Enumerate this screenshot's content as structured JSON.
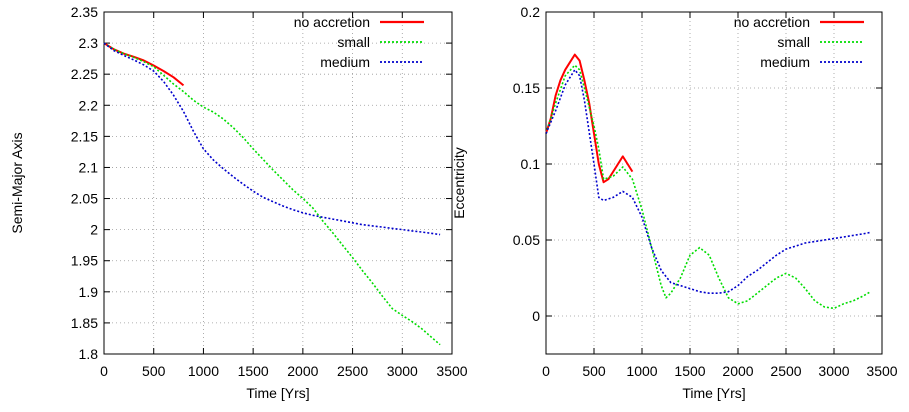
{
  "chart_data": [
    {
      "type": "line",
      "xlabel": "Time [Yrs]",
      "ylabel": "Semi-Major Axis",
      "xlim": [
        0,
        3500
      ],
      "ylim": [
        1.8,
        2.35
      ],
      "xticks": [
        "0",
        "500",
        "1000",
        "1500",
        "2000",
        "2500",
        "3000",
        "3500"
      ],
      "yticks": [
        "1.8",
        "1.85",
        "1.9",
        "1.95",
        "2",
        "2.05",
        "2.1",
        "2.15",
        "2.2",
        "2.25",
        "2.3",
        "2.35"
      ],
      "grid": true,
      "legend_position": "top-right",
      "series": [
        {
          "name": "no accretion",
          "color": "#ff0000",
          "x": [
            0,
            100,
            200,
            300,
            400,
            500,
            600,
            700,
            800
          ],
          "y": [
            2.3,
            2.29,
            2.283,
            2.278,
            2.272,
            2.264,
            2.255,
            2.245,
            2.232
          ]
        },
        {
          "name": "small",
          "color": "#00dd00",
          "x": [
            0,
            100,
            200,
            300,
            400,
            500,
            600,
            700,
            800,
            900,
            1000,
            1100,
            1200,
            1300,
            1400,
            1500,
            1600,
            1700,
            1800,
            1900,
            2000,
            2100,
            2200,
            2300,
            2400,
            2500,
            2600,
            2700,
            2800,
            2900,
            3000,
            3100,
            3200,
            3300,
            3380
          ],
          "y": [
            2.3,
            2.29,
            2.283,
            2.277,
            2.27,
            2.262,
            2.248,
            2.234,
            2.222,
            2.208,
            2.197,
            2.189,
            2.178,
            2.164,
            2.148,
            2.13,
            2.113,
            2.096,
            2.08,
            2.064,
            2.05,
            2.035,
            2.014,
            1.995,
            1.975,
            1.955,
            1.934,
            1.914,
            1.893,
            1.873,
            1.862,
            1.852,
            1.84,
            1.826,
            1.815
          ]
        },
        {
          "name": "medium",
          "color": "#0000cc",
          "x": [
            0,
            100,
            200,
            300,
            400,
            500,
            600,
            700,
            800,
            900,
            1000,
            1100,
            1200,
            1300,
            1400,
            1500,
            1600,
            1700,
            1800,
            1900,
            2000,
            2100,
            2200,
            2300,
            2400,
            2500,
            2600,
            2700,
            2800,
            2900,
            3000,
            3100,
            3200,
            3300,
            3380
          ],
          "y": [
            2.3,
            2.288,
            2.28,
            2.273,
            2.265,
            2.255,
            2.238,
            2.216,
            2.19,
            2.158,
            2.13,
            2.112,
            2.098,
            2.085,
            2.073,
            2.062,
            2.052,
            2.045,
            2.038,
            2.032,
            2.027,
            2.023,
            2.02,
            2.017,
            2.014,
            2.011,
            2.008,
            2.006,
            2.004,
            2.002,
            2.0,
            1.998,
            1.996,
            1.994,
            1.992
          ]
        }
      ]
    },
    {
      "type": "line",
      "xlabel": "Time [Yrs]",
      "ylabel": "Eccentricity",
      "xlim": [
        0,
        3500
      ],
      "ylim": [
        -0.025,
        0.2
      ],
      "xticks": [
        "0",
        "500",
        "1000",
        "1500",
        "2000",
        "2500",
        "3000",
        "3500"
      ],
      "yticks": [
        "0",
        "0.05",
        "0.1",
        "0.15",
        "0.2"
      ],
      "grid": true,
      "legend_position": "top-right",
      "series": [
        {
          "name": "no accretion",
          "color": "#ff0000",
          "x": [
            0,
            50,
            100,
            150,
            200,
            250,
            300,
            350,
            400,
            450,
            500,
            550,
            600,
            650,
            700,
            750,
            800,
            850,
            900
          ],
          "y": [
            0.12,
            0.13,
            0.145,
            0.155,
            0.162,
            0.167,
            0.172,
            0.168,
            0.155,
            0.14,
            0.12,
            0.1,
            0.088,
            0.09,
            0.095,
            0.1,
            0.105,
            0.1,
            0.095
          ]
        },
        {
          "name": "small",
          "color": "#00dd00",
          "x": [
            0,
            100,
            200,
            300,
            350,
            400,
            500,
            550,
            600,
            700,
            800,
            900,
            1000,
            1100,
            1200,
            1250,
            1300,
            1400,
            1500,
            1600,
            1700,
            1800,
            1900,
            2000,
            2100,
            2200,
            2300,
            2400,
            2500,
            2600,
            2700,
            2800,
            2900,
            3000,
            3100,
            3200,
            3300,
            3380
          ],
          "y": [
            0.12,
            0.14,
            0.158,
            0.165,
            0.162,
            0.15,
            0.125,
            0.11,
            0.09,
            0.092,
            0.098,
            0.09,
            0.07,
            0.045,
            0.02,
            0.012,
            0.015,
            0.025,
            0.04,
            0.045,
            0.04,
            0.025,
            0.012,
            0.008,
            0.01,
            0.015,
            0.02,
            0.025,
            0.028,
            0.025,
            0.018,
            0.01,
            0.006,
            0.005,
            0.008,
            0.01,
            0.013,
            0.016
          ]
        },
        {
          "name": "medium",
          "color": "#0000cc",
          "x": [
            0,
            100,
            200,
            300,
            350,
            400,
            500,
            550,
            600,
            700,
            800,
            900,
            1000,
            1100,
            1200,
            1300,
            1400,
            1500,
            1600,
            1700,
            1800,
            1900,
            2000,
            2100,
            2200,
            2300,
            2400,
            2500,
            2600,
            2700,
            2800,
            2900,
            3000,
            3100,
            3200,
            3300,
            3380
          ],
          "y": [
            0.12,
            0.135,
            0.152,
            0.162,
            0.158,
            0.142,
            0.1,
            0.078,
            0.076,
            0.078,
            0.082,
            0.078,
            0.065,
            0.045,
            0.03,
            0.022,
            0.02,
            0.018,
            0.016,
            0.015,
            0.015,
            0.016,
            0.02,
            0.026,
            0.03,
            0.035,
            0.04,
            0.044,
            0.046,
            0.048,
            0.049,
            0.05,
            0.051,
            0.052,
            0.053,
            0.054,
            0.055
          ]
        }
      ]
    }
  ]
}
